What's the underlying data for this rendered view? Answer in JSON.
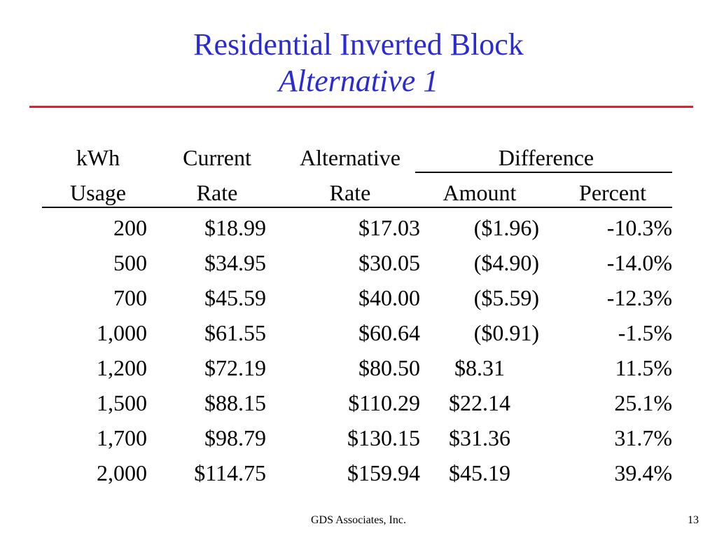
{
  "slide": {
    "title_line1": "Residential Inverted Block",
    "title_line2": "Alternative 1",
    "footer_center": "GDS Associates, Inc.",
    "page_number": "13",
    "title_color": "#2b2bd6",
    "rule_color": "#e0202a"
  },
  "table": {
    "header_row1": {
      "usage": "kWh",
      "current": "Current",
      "alternative": "Alternative",
      "difference": "Difference"
    },
    "header_row2": {
      "usage": "Usage",
      "current": "Rate",
      "alternative": "Rate",
      "amount": "Amount",
      "percent": "Percent"
    },
    "rows": [
      {
        "usage": "200",
        "current": "$18.99",
        "alternative": "$17.03",
        "amount": "($1.96)",
        "percent": "-10.3%"
      },
      {
        "usage": "500",
        "current": "$34.95",
        "alternative": "$30.05",
        "amount": "($4.90)",
        "percent": "-14.0%"
      },
      {
        "usage": "700",
        "current": "$45.59",
        "alternative": "$40.00",
        "amount": "($5.59)",
        "percent": "-12.3%"
      },
      {
        "usage": "1,000",
        "current": "$61.55",
        "alternative": "$60.64",
        "amount": "($0.91)",
        "percent": "-1.5%"
      },
      {
        "usage": "1,200",
        "current": "$72.19",
        "alternative": "$80.50",
        "amount": "$8.31",
        "percent": "11.5%"
      },
      {
        "usage": "1,500",
        "current": "$88.15",
        "alternative": "$110.29",
        "amount": "$22.14",
        "percent": "25.1%"
      },
      {
        "usage": "1,700",
        "current": "$98.79",
        "alternative": "$130.15",
        "amount": "$31.36",
        "percent": "31.7%"
      },
      {
        "usage": "2,000",
        "current": "$114.75",
        "alternative": "$159.94",
        "amount": "$45.19",
        "percent": "39.4%"
      }
    ]
  }
}
